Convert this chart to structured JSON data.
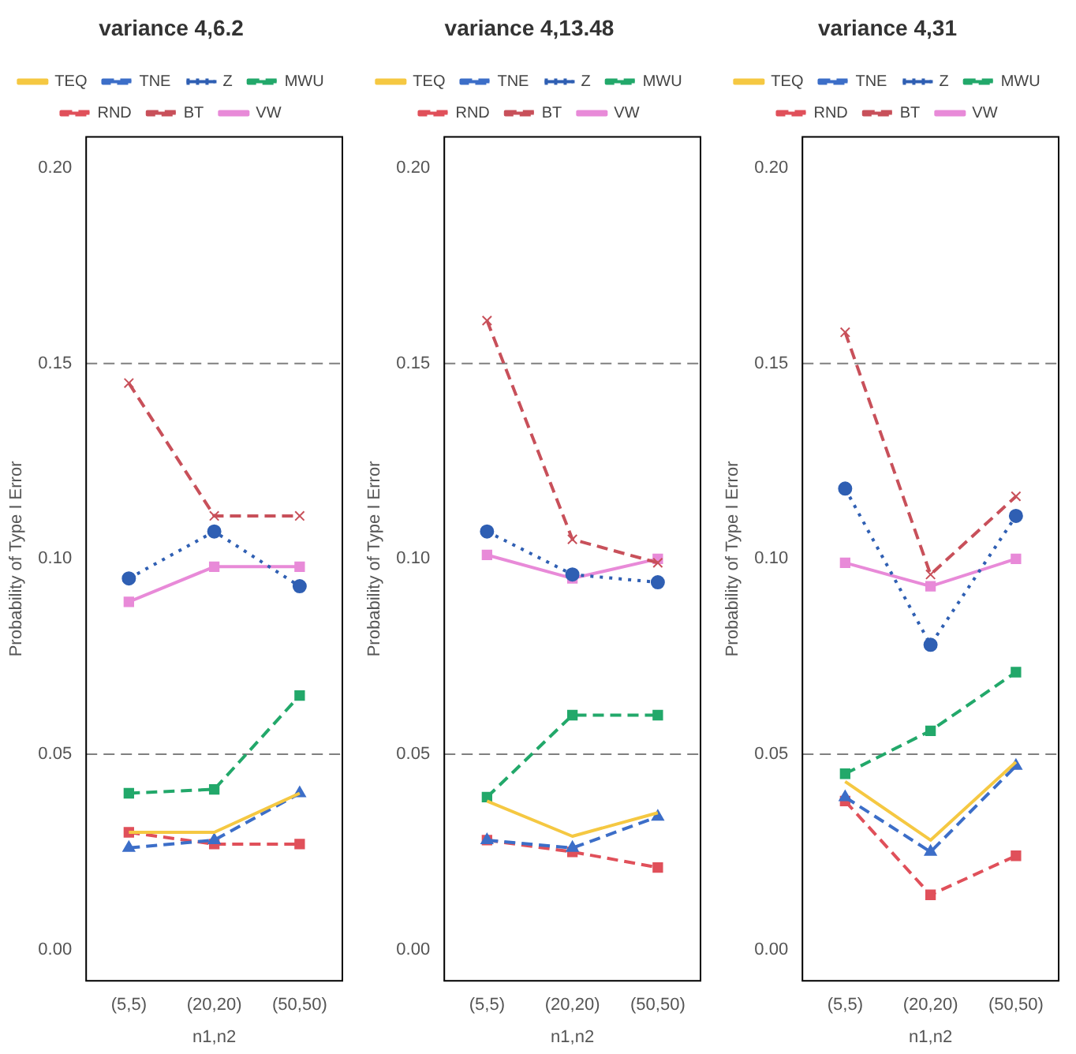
{
  "chart_data": [
    {
      "type": "line",
      "title": "variance 4,6.2",
      "xlabel": "n1,n2",
      "ylabel": "Probability of Type I Error",
      "categories": [
        "(5,5)",
        "(20,20)",
        "(50,50)"
      ],
      "ylim": [
        -0.008,
        0.208
      ],
      "yticks": [
        {
          "value": 0,
          "label": "0.00"
        },
        {
          "value": 0.05,
          "label": "0.05"
        },
        {
          "value": 0.1,
          "label": "0.10"
        },
        {
          "value": 0.15,
          "label": "0.15"
        },
        {
          "value": 0.2,
          "label": "0.20"
        }
      ],
      "grid": false,
      "legend": "top",
      "ref_lines": [
        {
          "axis": "y",
          "value": 0.05,
          "color": "#808080",
          "line_style": "dashed"
        },
        {
          "axis": "y",
          "value": 0.15,
          "color": "#808080",
          "line_style": "dashed"
        }
      ],
      "series": [
        {
          "name": "TEQ",
          "color": "#f5c842",
          "line_style": "solid",
          "marker": "none",
          "values": [
            0.03,
            0.03,
            0.04
          ]
        },
        {
          "name": "TNE",
          "color": "#3c6ec8",
          "line_style": "dashed",
          "marker": "triangle",
          "values": [
            0.026,
            0.028,
            0.04
          ]
        },
        {
          "name": "Z",
          "color": "#2f5fb3",
          "line_style": "dotted",
          "marker": "circle",
          "values": [
            0.095,
            0.107,
            0.093
          ]
        },
        {
          "name": "MWU",
          "color": "#22a86a",
          "line_style": "dashed",
          "marker": "square",
          "values": [
            0.04,
            0.041,
            0.065
          ]
        },
        {
          "name": "RND",
          "color": "#e0505a",
          "line_style": "dashed",
          "marker": "square",
          "values": [
            0.03,
            0.027,
            0.027
          ]
        },
        {
          "name": "BT",
          "color": "#c8505a",
          "line_style": "dashed",
          "marker": "cross",
          "values": [
            0.145,
            0.111,
            0.111
          ]
        },
        {
          "name": "VW",
          "color": "#e88ad8",
          "line_style": "solid",
          "marker": "square",
          "values": [
            0.089,
            0.098,
            0.098
          ]
        }
      ]
    },
    {
      "type": "line",
      "title": "variance 4,13.48",
      "xlabel": "n1,n2",
      "ylabel": "Probability of Type I Error",
      "categories": [
        "(5,5)",
        "(20,20)",
        "(50,50)"
      ],
      "ylim": [
        -0.008,
        0.208
      ],
      "yticks": [
        {
          "value": 0,
          "label": "0.00"
        },
        {
          "value": 0.05,
          "label": "0.05"
        },
        {
          "value": 0.1,
          "label": "0.10"
        },
        {
          "value": 0.15,
          "label": "0.15"
        },
        {
          "value": 0.2,
          "label": "0.20"
        }
      ],
      "grid": false,
      "legend": "top",
      "ref_lines": [
        {
          "axis": "y",
          "value": 0.05,
          "color": "#808080",
          "line_style": "dashed"
        },
        {
          "axis": "y",
          "value": 0.15,
          "color": "#808080",
          "line_style": "dashed"
        }
      ],
      "series": [
        {
          "name": "TEQ",
          "color": "#f5c842",
          "line_style": "solid",
          "marker": "none",
          "values": [
            0.038,
            0.029,
            0.035
          ]
        },
        {
          "name": "TNE",
          "color": "#3c6ec8",
          "line_style": "dashed",
          "marker": "triangle",
          "values": [
            0.028,
            0.026,
            0.034
          ]
        },
        {
          "name": "Z",
          "color": "#2f5fb3",
          "line_style": "dotted",
          "marker": "circle",
          "values": [
            0.107,
            0.096,
            0.094
          ]
        },
        {
          "name": "MWU",
          "color": "#22a86a",
          "line_style": "dashed",
          "marker": "square",
          "values": [
            0.039,
            0.06,
            0.06
          ]
        },
        {
          "name": "RND",
          "color": "#e0505a",
          "line_style": "dashed",
          "marker": "square",
          "values": [
            0.028,
            0.025,
            0.021
          ]
        },
        {
          "name": "BT",
          "color": "#c8505a",
          "line_style": "dashed",
          "marker": "cross",
          "values": [
            0.161,
            0.105,
            0.099
          ]
        },
        {
          "name": "VW",
          "color": "#e88ad8",
          "line_style": "solid",
          "marker": "square",
          "values": [
            0.101,
            0.095,
            0.1
          ]
        }
      ]
    },
    {
      "type": "line",
      "title": "variance 4,31",
      "xlabel": "n1,n2",
      "ylabel": "Probability of Type I Error",
      "categories": [
        "(5,5)",
        "(20,20)",
        "(50,50)"
      ],
      "ylim": [
        -0.008,
        0.208
      ],
      "yticks": [
        {
          "value": 0,
          "label": "0.00"
        },
        {
          "value": 0.05,
          "label": "0.05"
        },
        {
          "value": 0.1,
          "label": "0.10"
        },
        {
          "value": 0.15,
          "label": "0.15"
        },
        {
          "value": 0.2,
          "label": "0.20"
        }
      ],
      "grid": false,
      "legend": "top",
      "ref_lines": [
        {
          "axis": "y",
          "value": 0.05,
          "color": "#808080",
          "line_style": "dashed"
        },
        {
          "axis": "y",
          "value": 0.15,
          "color": "#808080",
          "line_style": "dashed"
        }
      ],
      "series": [
        {
          "name": "TEQ",
          "color": "#f5c842",
          "line_style": "solid",
          "marker": "none",
          "values": [
            0.043,
            0.028,
            0.048
          ]
        },
        {
          "name": "TNE",
          "color": "#3c6ec8",
          "line_style": "dashed",
          "marker": "triangle",
          "values": [
            0.039,
            0.025,
            0.047
          ]
        },
        {
          "name": "Z",
          "color": "#2f5fb3",
          "line_style": "dotted",
          "marker": "circle",
          "values": [
            0.118,
            0.078,
            0.111
          ]
        },
        {
          "name": "MWU",
          "color": "#22a86a",
          "line_style": "dashed",
          "marker": "square",
          "values": [
            0.045,
            0.056,
            0.071
          ]
        },
        {
          "name": "RND",
          "color": "#e0505a",
          "line_style": "dashed",
          "marker": "square",
          "values": [
            0.038,
            0.014,
            0.024
          ]
        },
        {
          "name": "BT",
          "color": "#c8505a",
          "line_style": "dashed",
          "marker": "cross",
          "values": [
            0.158,
            0.096,
            0.116
          ]
        },
        {
          "name": "VW",
          "color": "#e88ad8",
          "line_style": "solid",
          "marker": "square",
          "values": [
            0.099,
            0.093,
            0.1
          ]
        }
      ]
    }
  ]
}
